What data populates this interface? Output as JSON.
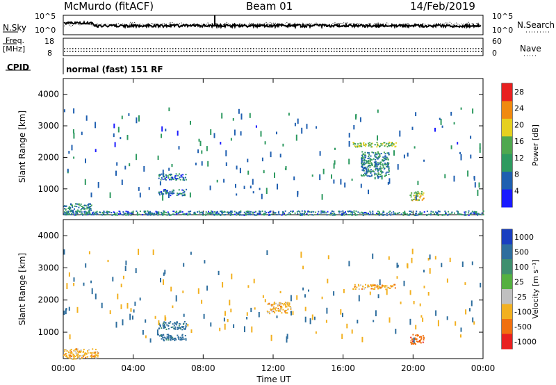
{
  "header": {
    "station": "McMurdo (fitACF)",
    "beam": "Beam 01",
    "date": "14/Feb/2019"
  },
  "noise_panel": {
    "left_label": "N.Sky",
    "left_ticks": [
      "10^5",
      "10^0"
    ],
    "right_label": "N.Search",
    "right_ticks": [
      "10^5",
      "10^0"
    ]
  },
  "freq_panel": {
    "left_label_1": "Freq.",
    "left_label_2": "[MHz]",
    "left_ticks": [
      "18",
      "8"
    ],
    "right_label": "Nave",
    "right_ticks": [
      "60",
      "0"
    ]
  },
  "cpid": {
    "label": "CPID",
    "text": "normal (fast) 151 RF"
  },
  "chart_data": [
    {
      "type": "heatmap",
      "title": "",
      "xlabel": "Time UT",
      "ylabel": "Slant Range [km]",
      "xlim": [
        "00:00",
        "24:00"
      ],
      "ylim": [
        180,
        4500
      ],
      "x_ticks": [
        "00:00",
        "04:00",
        "08:00",
        "12:00",
        "16:00",
        "20:00",
        "00:00"
      ],
      "y_ticks": [
        1000,
        2000,
        3000,
        4000
      ],
      "colorbar": {
        "label": "Power [dB]",
        "range": [
          0,
          30
        ],
        "ticks": [
          4,
          8,
          12,
          16,
          20,
          24,
          28
        ],
        "colors": [
          "#1a1aff",
          "#1f5fb0",
          "#2e9a60",
          "#4fa84f",
          "#e6d020",
          "#f08a10",
          "#e82020"
        ]
      },
      "scatter_regions": [
        {
          "t_start": 5.4,
          "t_end": 7.0,
          "r_start": 1300,
          "r_end": 1500,
          "dB": 8
        },
        {
          "t_start": 5.4,
          "t_end": 7.0,
          "r_start": 800,
          "r_end": 1000,
          "dB": 8
        },
        {
          "t_start": 16.5,
          "t_end": 19.0,
          "r_start": 2350,
          "r_end": 2500,
          "dB": 16
        },
        {
          "t_start": 17.0,
          "t_end": 18.6,
          "r_start": 1400,
          "r_end": 2200,
          "dB": 10
        },
        {
          "t_start": 19.8,
          "t_end": 20.6,
          "r_start": 650,
          "r_end": 950,
          "dB": 18
        },
        {
          "t_start": 0.0,
          "t_end": 1.6,
          "r_start": 200,
          "r_end": 550,
          "dB": 10
        },
        {
          "t_start": 0.0,
          "t_end": 24.0,
          "r_start": 180,
          "r_end": 320,
          "dB": 8
        }
      ]
    },
    {
      "type": "heatmap",
      "title": "",
      "xlabel": "Time UT",
      "ylabel": "Slant Range [km]",
      "xlim": [
        "00:00",
        "24:00"
      ],
      "ylim": [
        180,
        4500
      ],
      "x_ticks": [
        "00:00",
        "04:00",
        "08:00",
        "12:00",
        "16:00",
        "20:00",
        "00:00"
      ],
      "y_ticks": [
        1000,
        2000,
        3000,
        4000
      ],
      "colorbar": {
        "label": "Velocity [m s^-1]",
        "ticks": [
          1000,
          500,
          100,
          25,
          -25,
          -100,
          -500,
          -1000
        ],
        "colors": [
          "#1a3fc0",
          "#2e6e9e",
          "#3f8f6e",
          "#55b040",
          "#c0c0c0",
          "#f2b020",
          "#f07010",
          "#e82020"
        ]
      },
      "scatter_regions": [
        {
          "t_start": 5.4,
          "t_end": 7.0,
          "r_start": 1100,
          "r_end": 1350,
          "vel": 500
        },
        {
          "t_start": 5.4,
          "t_end": 7.0,
          "r_start": 750,
          "r_end": 950,
          "vel": 500
        },
        {
          "t_start": 16.5,
          "t_end": 19.0,
          "r_start": 2350,
          "r_end": 2500,
          "vel": -100
        },
        {
          "t_start": 11.6,
          "t_end": 13.0,
          "r_start": 1600,
          "r_end": 1950,
          "vel": -100
        },
        {
          "t_start": 19.8,
          "t_end": 20.6,
          "r_start": 650,
          "r_end": 950,
          "vel": -500
        },
        {
          "t_start": 0.0,
          "t_end": 2.0,
          "r_start": 180,
          "r_end": 500,
          "vel": -100
        }
      ]
    }
  ]
}
